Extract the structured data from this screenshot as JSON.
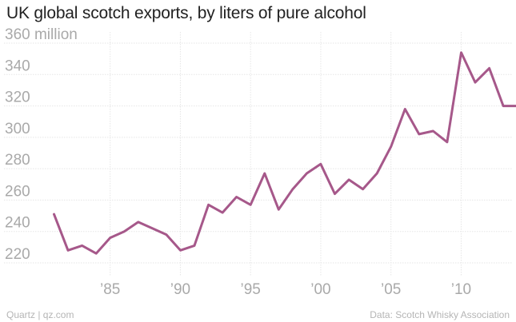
{
  "header": {
    "title": "UK global scotch exports, by liters of pure alcohol"
  },
  "footer": {
    "source_credit": "Quartz | qz.com",
    "data_credit": "Data: Scotch Whisky Association"
  },
  "colors": {
    "line": "#a6588a",
    "grid": "#e6e6e6",
    "tick_text": "#a9a9a9",
    "title": "#222222"
  },
  "chart_data": {
    "type": "line",
    "title": "UK global scotch exports, by liters of pure alcohol",
    "xlabel": "",
    "ylabel": "",
    "ylim": [
      220,
      360
    ],
    "xlim": [
      1980,
      2014.5
    ],
    "grid": true,
    "y_ticks": [
      220,
      240,
      260,
      280,
      300,
      320,
      340,
      360
    ],
    "y_tick_labels": [
      "220",
      "240",
      "260",
      "280",
      "300",
      "320",
      "340",
      "360 million"
    ],
    "x_ticks": [
      1985,
      1990,
      1995,
      2000,
      2005,
      2010
    ],
    "x_tick_labels": [
      "’85",
      "’90",
      "’95",
      "’00",
      "’05",
      "’10"
    ],
    "series": [
      {
        "x": [
          1981,
          1982,
          1983,
          1984,
          1985,
          1986,
          1987,
          1988,
          1989,
          1990,
          1991,
          1992,
          1993,
          1994,
          1995,
          1996,
          1997,
          1998,
          1999,
          2000,
          2001,
          2002,
          2003,
          2004,
          2005,
          2006,
          2007,
          2008,
          2009,
          2010,
          2011,
          2012,
          2013,
          2014
        ],
        "values": [
          251,
          228,
          231,
          226,
          236,
          240,
          246,
          242,
          238,
          228,
          231,
          257,
          252,
          262,
          257,
          277,
          254,
          267,
          277,
          283,
          264,
          273,
          267,
          277,
          294,
          318,
          302,
          304,
          297,
          354,
          335,
          344,
          320,
          320
        ]
      }
    ]
  }
}
